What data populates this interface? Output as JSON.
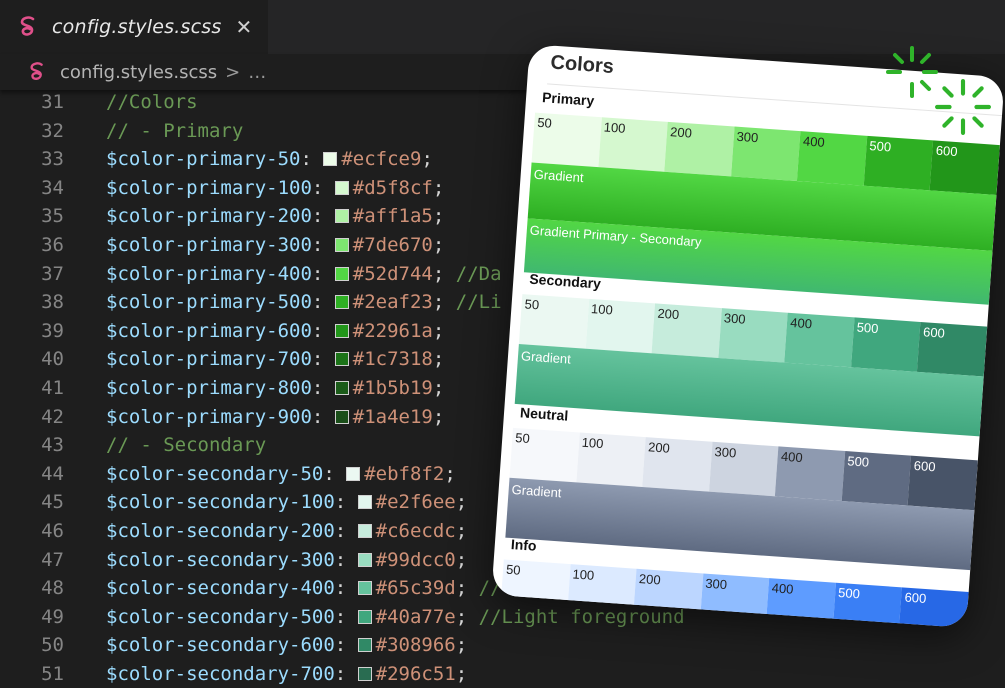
{
  "tab": {
    "title": "config.styles.scss",
    "close": "✕"
  },
  "breadcrumb": {
    "file": "config.styles.scss",
    "sep": ">",
    "more": "…"
  },
  "code_lines": [
    {
      "n": "31",
      "kind": "comment",
      "text": "//Colors"
    },
    {
      "n": "32",
      "kind": "comment",
      "text": "// - Primary"
    },
    {
      "n": "33",
      "kind": "decl",
      "name": "$color-primary-50",
      "value": "#ecfce9",
      "comment": ""
    },
    {
      "n": "34",
      "kind": "decl",
      "name": "$color-primary-100",
      "value": "#d5f8cf",
      "comment": ""
    },
    {
      "n": "35",
      "kind": "decl",
      "name": "$color-primary-200",
      "value": "#aff1a5",
      "comment": ""
    },
    {
      "n": "36",
      "kind": "decl",
      "name": "$color-primary-300",
      "value": "#7de670",
      "comment": ""
    },
    {
      "n": "37",
      "kind": "decl",
      "name": "$color-primary-400",
      "value": "#52d744",
      "comment": "//Da"
    },
    {
      "n": "38",
      "kind": "decl",
      "name": "$color-primary-500",
      "value": "#2eaf23",
      "comment": "//Li"
    },
    {
      "n": "39",
      "kind": "decl",
      "name": "$color-primary-600",
      "value": "#22961a",
      "comment": ""
    },
    {
      "n": "40",
      "kind": "decl",
      "name": "$color-primary-700",
      "value": "#1c7318",
      "comment": ""
    },
    {
      "n": "41",
      "kind": "decl",
      "name": "$color-primary-800",
      "value": "#1b5b19",
      "comment": ""
    },
    {
      "n": "42",
      "kind": "decl",
      "name": "$color-primary-900",
      "value": "#1a4e19",
      "comment": ""
    },
    {
      "n": "43",
      "kind": "comment",
      "text": "// - Secondary"
    },
    {
      "n": "44",
      "kind": "decl",
      "name": "$color-secondary-50",
      "value": "#ebf8f2",
      "comment": ""
    },
    {
      "n": "45",
      "kind": "decl",
      "name": "$color-secondary-100",
      "value": "#e2f6ee",
      "comment": ""
    },
    {
      "n": "46",
      "kind": "decl",
      "name": "$color-secondary-200",
      "value": "#c6ecdc",
      "comment": ""
    },
    {
      "n": "47",
      "kind": "decl",
      "name": "$color-secondary-300",
      "value": "#99dcc0",
      "comment": ""
    },
    {
      "n": "48",
      "kind": "decl",
      "name": "$color-secondary-400",
      "value": "#65c39d",
      "comment": "//"
    },
    {
      "n": "49",
      "kind": "decl",
      "name": "$color-secondary-500",
      "value": "#40a77e",
      "comment": "//Light foreground"
    },
    {
      "n": "50",
      "kind": "decl",
      "name": "$color-secondary-600",
      "value": "#308966",
      "comment": ""
    },
    {
      "n": "51",
      "kind": "decl",
      "name": "$color-secondary-700",
      "value": "#296c51",
      "comment": ""
    }
  ],
  "preview": {
    "title": "Colors",
    "sections": [
      {
        "title": "Primary",
        "labels": [
          "50",
          "100",
          "200",
          "300",
          "400",
          "500",
          "600"
        ],
        "colors": [
          "#ecfce9",
          "#d5f8cf",
          "#aff1a5",
          "#7de670",
          "#52d744",
          "#2eaf23",
          "#22961a"
        ],
        "gradients": [
          {
            "label": "Gradient",
            "from": "#52d744",
            "to": "#2eaf23"
          },
          {
            "label": "Gradient Primary - Secondary",
            "from": "#52d744",
            "to": "#40b870"
          }
        ]
      },
      {
        "title": "Secondary",
        "labels": [
          "50",
          "100",
          "200",
          "300",
          "400",
          "500",
          "600"
        ],
        "colors": [
          "#ebf8f2",
          "#e2f6ee",
          "#c6ecdc",
          "#99dcc0",
          "#65c39d",
          "#40a77e",
          "#308966"
        ],
        "gradients": [
          {
            "label": "Gradient",
            "from": "#65c39d",
            "to": "#40a77e"
          }
        ]
      },
      {
        "title": "Neutral",
        "labels": [
          "50",
          "100",
          "200",
          "300",
          "400",
          "500",
          "600"
        ],
        "colors": [
          "#f6f8fb",
          "#edf0f5",
          "#e0e5ee",
          "#cdd4e0",
          "#8e9ab0",
          "#5f6b82",
          "#485468"
        ],
        "gradients": [
          {
            "label": "Gradient",
            "from": "#8e9ab0",
            "to": "#5f6b82"
          }
        ]
      },
      {
        "title": "Info",
        "labels": [
          "50",
          "100",
          "200",
          "300",
          "400",
          "500",
          "600"
        ],
        "colors": [
          "#eef5ff",
          "#dceaff",
          "#bcd6ff",
          "#8fbcff",
          "#5e9cff",
          "#3a7ff5",
          "#2768e6"
        ],
        "gradients": []
      }
    ]
  },
  "colors": {
    "editor_bg": "#1e1e1e",
    "tabbar_bg": "#252526",
    "sass_pink": "#e0508a",
    "comment": "#6a9955",
    "variable": "#9cdcfe",
    "value": "#ce9178",
    "spark": "#2fb32a"
  }
}
